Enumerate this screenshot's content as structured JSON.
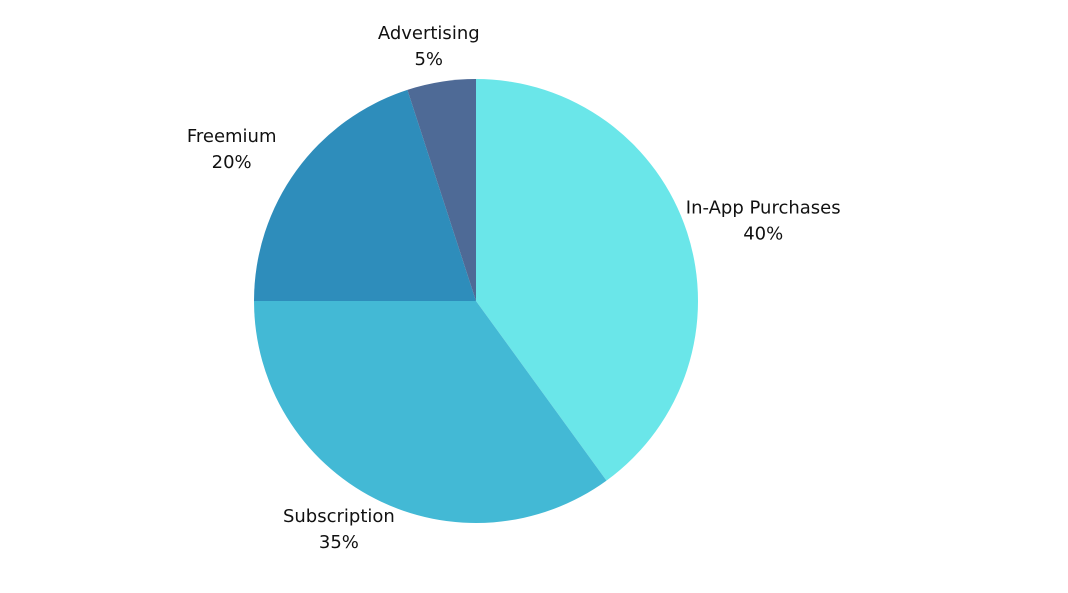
{
  "chart_data": {
    "type": "pie",
    "categories": [
      "In-App Purchases",
      "Subscription",
      "Freemium",
      "Advertising"
    ],
    "values": [
      40,
      35,
      20,
      5
    ],
    "value_labels": [
      "40%",
      "35%",
      "20%",
      "5%"
    ],
    "colors": [
      "#6ae6e9",
      "#43b9d5",
      "#2e8dbb",
      "#4e6a96"
    ]
  }
}
